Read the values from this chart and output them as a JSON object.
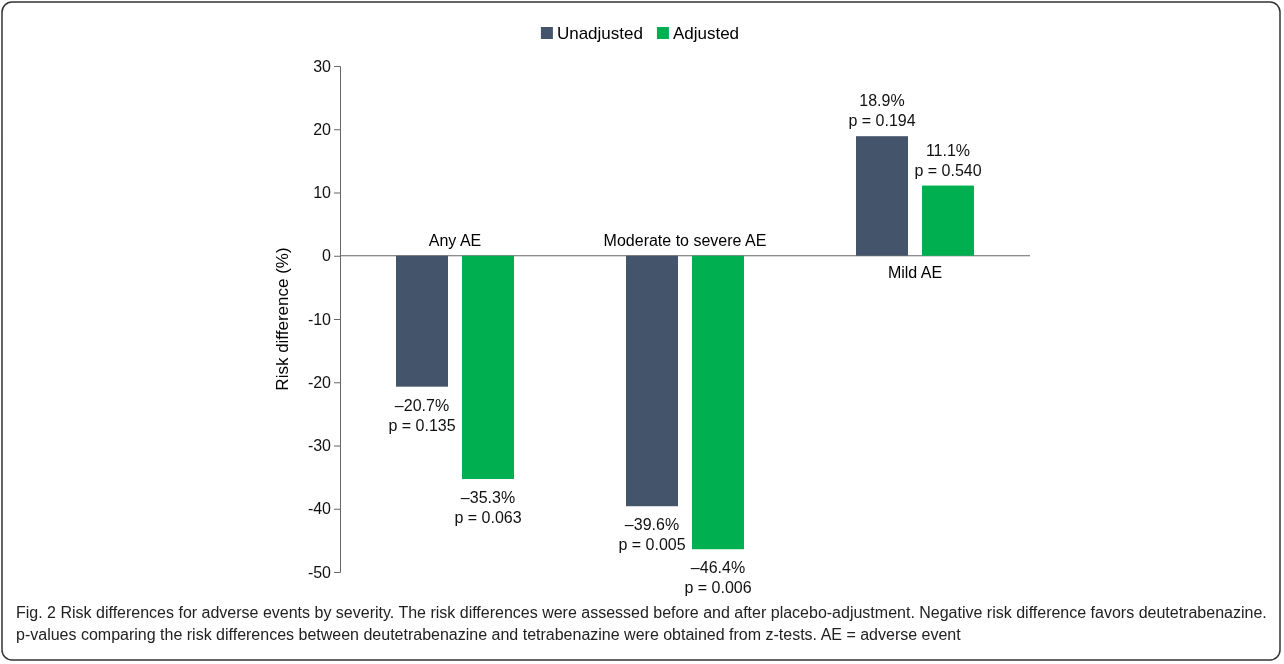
{
  "chart_data": {
    "type": "bar",
    "ylabel": "Risk difference (%)",
    "categories": [
      "Any AE",
      "Moderate to severe AE",
      "Mild AE"
    ],
    "series": [
      {
        "name": "Unadjusted",
        "color": "#44546a",
        "values": [
          -20.7,
          -39.6,
          18.9
        ],
        "value_labels": [
          "–20.7%\np = 0.135",
          "–39.6%\np = 0.005",
          "18.9%\np = 0.194"
        ]
      },
      {
        "name": "Adjusted",
        "color": "#00b050",
        "values": [
          -35.3,
          -46.4,
          11.1
        ],
        "value_labels": [
          "–35.3%\np = 0.063",
          "–46.4%\np = 0.006",
          "11.1%\np = 0.540"
        ]
      }
    ],
    "ylim": [
      -50,
      30
    ],
    "yticks": [
      -50,
      -40,
      -30,
      -20,
      -10,
      0,
      10,
      20,
      30
    ],
    "grid": false,
    "legend": "top",
    "annotations": [
      "Fig. 2 Risk differences for adverse events by severity. The risk differences were assessed before and after placebo-adjustment. Negative risk difference favors deutetrabenazine. p-values comparing the risk differences between deutetrabenazine and tetrabenazine were obtained from z-tests. AE = adverse event"
    ]
  }
}
